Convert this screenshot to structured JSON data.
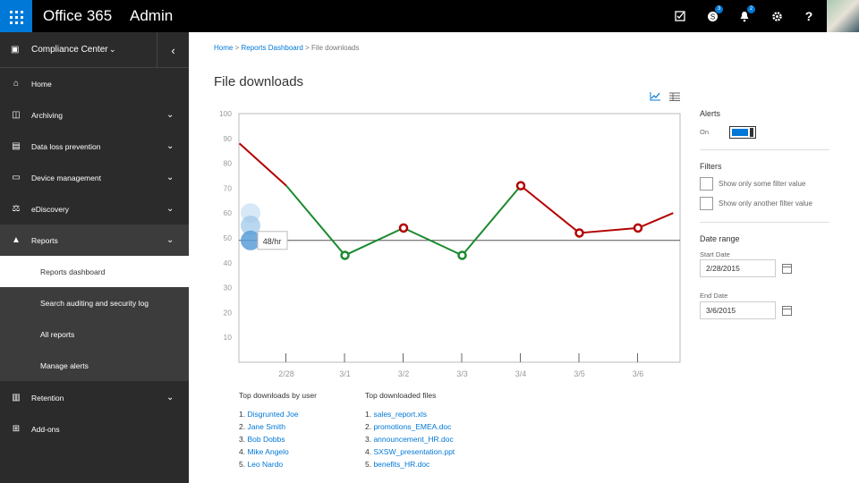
{
  "topbar": {
    "brand": "Office 365",
    "section": "Admin",
    "icons": [
      "tasks-icon",
      "skype-icon",
      "bell-icon",
      "gear-icon",
      "help-icon"
    ],
    "skype_badge": "3",
    "notif_badge": "2",
    "help": "?"
  },
  "sidebar": {
    "header": "Compliance Center",
    "items": [
      {
        "label": "Home",
        "icon": "home-icon"
      },
      {
        "label": "Archiving",
        "icon": "archive-icon"
      },
      {
        "label": "Data loss prevention",
        "icon": "dlp-icon"
      },
      {
        "label": "Device management",
        "icon": "device-icon"
      },
      {
        "label": "eDiscovery",
        "icon": "ediscovery-icon"
      },
      {
        "label": "Reports",
        "icon": "reports-icon"
      },
      {
        "label": "Retention",
        "icon": "retention-icon"
      },
      {
        "label": "Add-ons",
        "icon": "addons-icon"
      }
    ],
    "subitems": [
      {
        "label": "Reports dashboard"
      },
      {
        "label": "Search auditing and security log"
      },
      {
        "label": "All reports"
      },
      {
        "label": "Manage alerts"
      }
    ]
  },
  "breadcrumb": {
    "home": "Home",
    "sep1": ">",
    "dashboard": "Reports Dashboard",
    "sep2": ">",
    "current": "File downloads"
  },
  "page": {
    "title": "File downloads"
  },
  "chart_data": {
    "type": "line",
    "title": "",
    "xlabel": "",
    "ylabel": "",
    "ylim": [
      0,
      100
    ],
    "y_ticks": [
      10,
      20,
      30,
      40,
      50,
      60,
      70,
      80,
      90,
      100
    ],
    "categories": [
      "2/28",
      "3/1",
      "3/2",
      "3/3",
      "3/4",
      "3/5",
      "3/6"
    ],
    "series": [
      {
        "x": [
          -0.8,
          0,
          1,
          2,
          3,
          4,
          5,
          6,
          6.6
        ],
        "values": [
          88,
          71,
          43,
          54,
          43,
          71,
          52,
          54,
          60
        ]
      }
    ],
    "threshold": 49,
    "tooltip_text": "48/hr",
    "colors": {
      "above": "#b30000",
      "below": "#1a8a2e",
      "threshold": "#555555"
    }
  },
  "top_users": {
    "title": "Top downloads by user",
    "items": [
      "Disgrunted Joe",
      "Jane Smith",
      "Bob Dobbs",
      "Mike Angelo",
      "Leo Nardo"
    ]
  },
  "top_files": {
    "title": "Top downloaded files",
    "items": [
      "sales_report.xls",
      "promotions_EMEA.doc",
      "announcement_HR.doc",
      "SXSW_presentation.ppt",
      "benefits_HR.doc"
    ]
  },
  "right_panel": {
    "alerts_label": "Alerts",
    "alerts_state": "On",
    "filters_label": "Filters",
    "filter1": "Show only some filter value",
    "filter2": "Show only another filter value",
    "date_range_label": "Date range",
    "start_label": "Start Date",
    "start_value": "2/28/2015",
    "end_label": "End Date",
    "end_value": "3/6/2015"
  }
}
